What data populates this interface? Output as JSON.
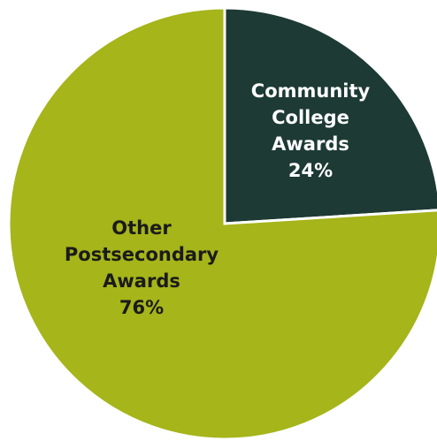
{
  "chart_data": {
    "type": "pie",
    "slices": [
      {
        "label_lines": [
          "Community",
          "College",
          "Awards"
        ],
        "value": 24,
        "value_label": "24%",
        "color": "#1d3a35",
        "text_color": "#ffffff"
      },
      {
        "label_lines": [
          "Other",
          "Postsecondary",
          "Awards"
        ],
        "value": 76,
        "value_label": "76%",
        "color": "#a5b51a",
        "text_color": "#1b1b1b"
      }
    ],
    "start_position": "12 o'clock",
    "direction": "clockwise",
    "separator_color": "#ffffff"
  }
}
